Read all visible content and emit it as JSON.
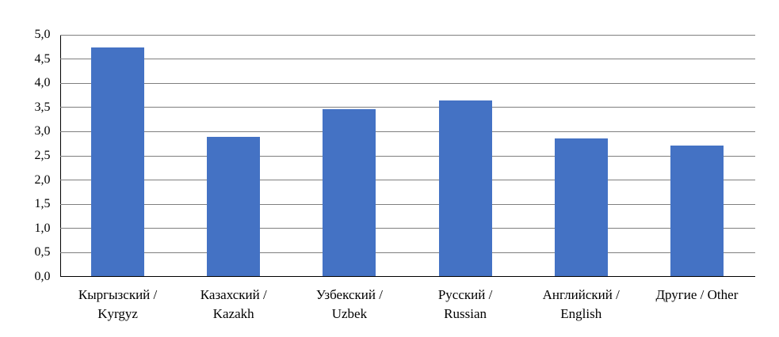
{
  "chart_data": {
    "type": "bar",
    "title": "",
    "xlabel": "",
    "ylabel": "",
    "categories": [
      "Кыргызский / Kyrgyz",
      "Казахский / Kazakh",
      "Узбекский / Uzbek",
      "Русский / Russian",
      "Английский / English",
      "Другие / Other"
    ],
    "category_label_lines": [
      [
        "Кыргызский /",
        "Kyrgyz"
      ],
      [
        "Казахский /",
        "Kazakh"
      ],
      [
        "Узбекский /",
        "Uzbek"
      ],
      [
        "Русский /",
        "Russian"
      ],
      [
        "Английский /",
        "English"
      ],
      [
        "Другие / Other"
      ]
    ],
    "series": [
      {
        "name": "",
        "values": [
          4.74,
          2.9,
          3.47,
          3.64,
          2.86,
          2.72
        ]
      }
    ],
    "ylim": [
      0,
      5
    ],
    "ytick_interval": 0.5,
    "ytick_labels": [
      "0,0",
      "0,5",
      "1,0",
      "1,5",
      "2,0",
      "2,5",
      "3,0",
      "3,5",
      "4,0",
      "4,5",
      "5,0"
    ],
    "decimal_separator": ",",
    "grid": true,
    "legend": false,
    "colors": {
      "bar": "#4472C4",
      "gridline": "#7F7F7F",
      "axis": "#000000",
      "text": "#000000",
      "background": "#FFFFFF"
    }
  }
}
